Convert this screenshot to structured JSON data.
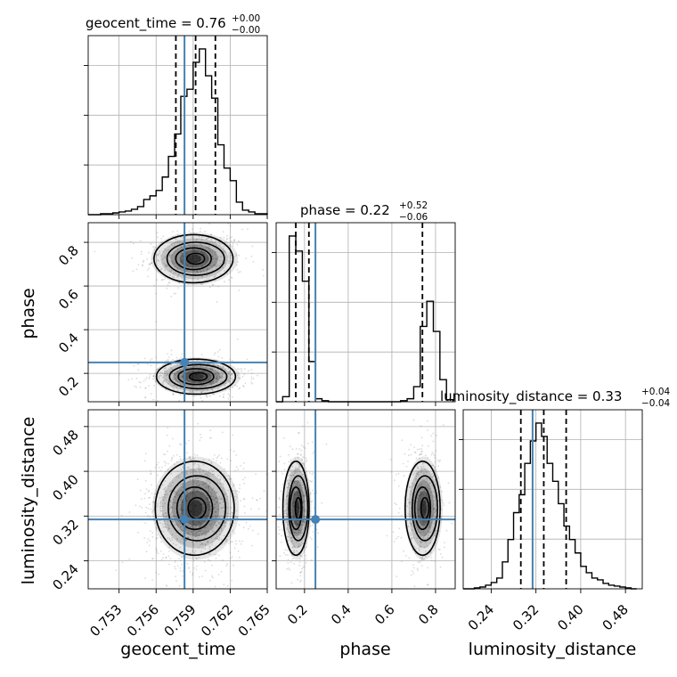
{
  "colors": {
    "truth": "#4682b4",
    "contour": "#000000",
    "grid": "#b0b0b0",
    "scatter": "#7f7f7f"
  },
  "chart_data": {
    "type": "corner",
    "parameters": [
      "geocent_time",
      "phase",
      "luminosity_distance"
    ],
    "truths": {
      "geocent_time": 0.7583,
      "phase": 0.25,
      "luminosity_distance": 0.314
    },
    "titles": [
      {
        "param": "geocent_time",
        "text": "geocent_time = 0.76",
        "plus": "+0.00",
        "minus": "−0.00"
      },
      {
        "param": "phase",
        "text": "phase = 0.22",
        "plus": "+0.52",
        "minus": "−0.06"
      },
      {
        "param": "luminosity_distance",
        "text": "luminosity_distance = 0.33",
        "plus": "+0.04",
        "minus": "−0.04"
      }
    ],
    "axes": {
      "geocent_time": {
        "label": "geocent_time",
        "range": [
          0.7505,
          0.765
        ],
        "ticks": [
          0.753,
          0.756,
          0.759,
          0.762,
          0.765
        ],
        "tick_labels": [
          "0.753",
          "0.756",
          "0.759",
          "0.762",
          "0.765"
        ]
      },
      "phase": {
        "label": "phase",
        "range": [
          0.07,
          0.89
        ],
        "ticks": [
          0.2,
          0.4,
          0.6,
          0.8
        ],
        "tick_labels": [
          "0.2",
          "0.4",
          "0.6",
          "0.8"
        ]
      },
      "luminosity_distance": {
        "label": "luminosity_distance",
        "range": [
          0.19,
          0.51
        ],
        "ticks": [
          0.24,
          0.32,
          0.4,
          0.48
        ],
        "tick_labels": [
          "0.24",
          "0.32",
          "0.40",
          "0.48"
        ]
      }
    },
    "histograms": {
      "geocent_time": {
        "bin_edges": [
          0.7505,
          0.751,
          0.7515,
          0.752,
          0.7525,
          0.753,
          0.7535,
          0.754,
          0.7545,
          0.755,
          0.7555,
          0.756,
          0.7565,
          0.757,
          0.7575,
          0.758,
          0.7585,
          0.759,
          0.7595,
          0.76,
          0.7605,
          0.761,
          0.7615,
          0.762,
          0.7625,
          0.763,
          0.7635,
          0.764,
          0.7645,
          0.765
        ],
        "counts": [
          0,
          0,
          1,
          1,
          2,
          3,
          4,
          6,
          9,
          17,
          21,
          27,
          42,
          65,
          90,
          132,
          140,
          170,
          185,
          155,
          130,
          78,
          52,
          38,
          14,
          5,
          3,
          1,
          1
        ],
        "quantiles": [
          0.7576,
          0.7592,
          0.7608
        ]
      },
      "phase": {
        "bin_edges": [
          0.07,
          0.1,
          0.13,
          0.16,
          0.19,
          0.22,
          0.25,
          0.28,
          0.31,
          0.34,
          0.37,
          0.4,
          0.43,
          0.46,
          0.49,
          0.52,
          0.55,
          0.58,
          0.61,
          0.64,
          0.67,
          0.7,
          0.73,
          0.76,
          0.79,
          0.82,
          0.85,
          0.88
        ],
        "counts": [
          0,
          5,
          165,
          150,
          120,
          40,
          3,
          1,
          0,
          0,
          0,
          0,
          0,
          0,
          0,
          0,
          0,
          0,
          0,
          1,
          3,
          15,
          75,
          100,
          70,
          22,
          2
        ],
        "quantiles": [
          0.16,
          0.22,
          0.74
        ]
      },
      "luminosity_distance": {
        "bin_edges": [
          0.19,
          0.2,
          0.21,
          0.22,
          0.23,
          0.24,
          0.25,
          0.26,
          0.27,
          0.28,
          0.29,
          0.3,
          0.31,
          0.32,
          0.33,
          0.34,
          0.35,
          0.36,
          0.37,
          0.38,
          0.39,
          0.4,
          0.41,
          0.42,
          0.43,
          0.44,
          0.45,
          0.46,
          0.47,
          0.48,
          0.49,
          0.5
        ],
        "counts": [
          0,
          0,
          1,
          2,
          4,
          7,
          12,
          30,
          55,
          85,
          105,
          140,
          165,
          185,
          170,
          140,
          120,
          95,
          70,
          55,
          40,
          25,
          18,
          12,
          10,
          6,
          4,
          3,
          2,
          1,
          0
        ],
        "quantiles": [
          0.293,
          0.334,
          0.374
        ]
      }
    },
    "pairs": [
      {
        "x": "geocent_time",
        "y": "phase",
        "modes": [
          {
            "cx": 0.7591,
            "cy": 0.725,
            "sx": 0.0016,
            "sy": 0.055,
            "w": 0.45
          },
          {
            "cx": 0.7593,
            "cy": 0.185,
            "sx": 0.0016,
            "sy": 0.04,
            "w": 0.55
          }
        ]
      },
      {
        "x": "geocent_time",
        "y": "luminosity_distance",
        "modes": [
          {
            "cx": 0.7592,
            "cy": 0.334,
            "sx": 0.0016,
            "sy": 0.042,
            "w": 1.0
          }
        ]
      },
      {
        "x": "phase",
        "y": "luminosity_distance",
        "modes": [
          {
            "cx": 0.165,
            "cy": 0.334,
            "sx": 0.03,
            "sy": 0.042,
            "w": 0.55
          },
          {
            "cx": 0.745,
            "cy": 0.334,
            "sx": 0.04,
            "sy": 0.042,
            "w": 0.45
          }
        ]
      }
    ]
  }
}
